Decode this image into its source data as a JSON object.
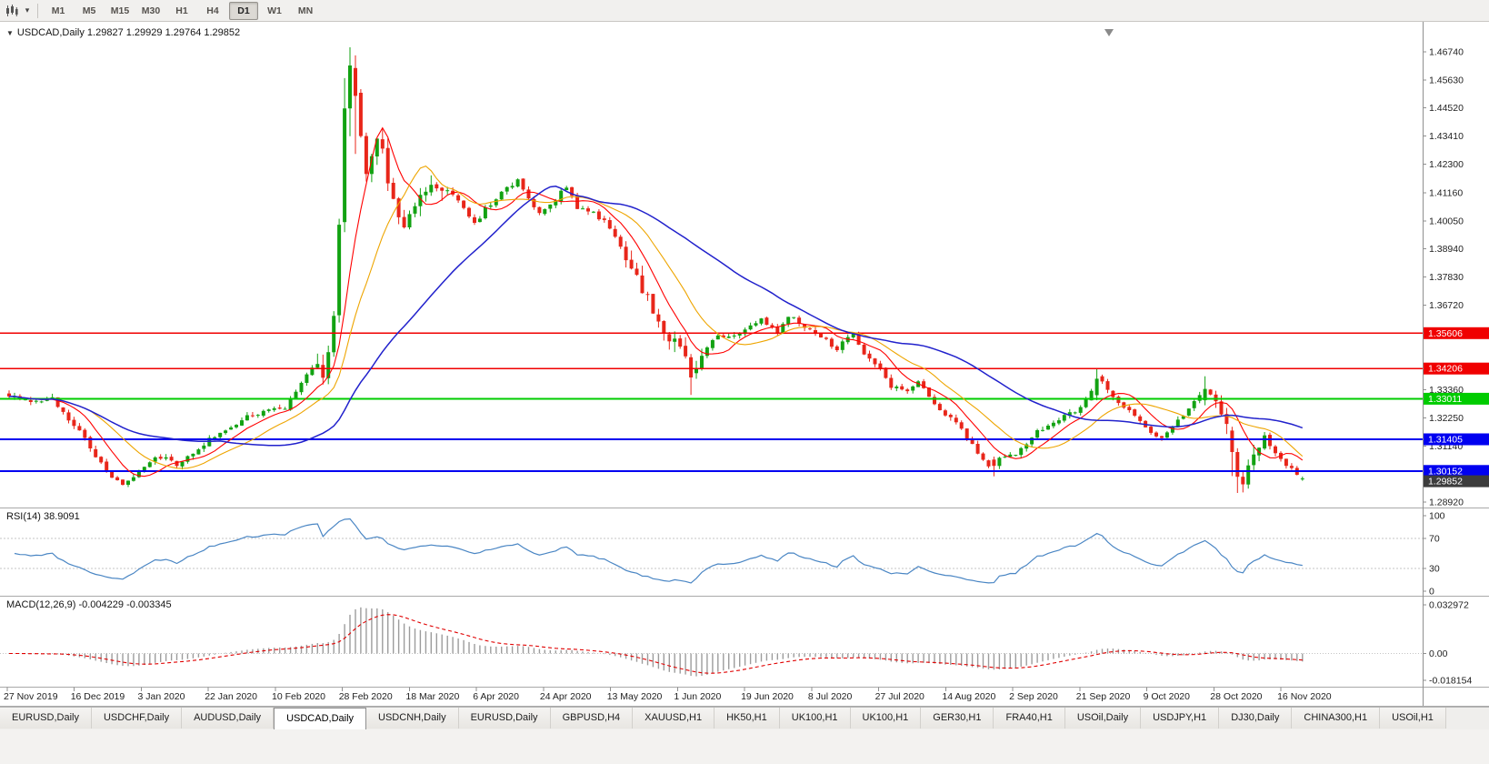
{
  "toolbar": {
    "timeframes": [
      "M1",
      "M5",
      "M15",
      "M30",
      "H1",
      "H4",
      "D1",
      "W1",
      "MN"
    ],
    "active_timeframe": "D1"
  },
  "chart": {
    "collapse_icon": "▼",
    "title": "USDCAD,Daily 1.29827 1.29929 1.29764 1.29852"
  },
  "rsi": {
    "label": "RSI(14) 38.9091",
    "period": 14,
    "value": "38.9091",
    "axis_labels": [
      "100",
      "70",
      "30",
      "0"
    ],
    "axis_values": [
      100,
      70,
      30,
      0
    ],
    "dashed_levels": [
      70,
      30
    ]
  },
  "macd": {
    "label": "MACD(12,26,9) -0.004229 -0.003345",
    "main_value": "-0.004229",
    "signal_value": "-0.003345",
    "axis_labels": [
      "0.032972",
      "0.00",
      "-0.018154"
    ],
    "axis_values": [
      0.032972,
      0,
      -0.018154
    ]
  },
  "axis": {
    "price_ticks": [
      "1.46740",
      "1.45630",
      "1.44520",
      "1.43410",
      "1.42300",
      "1.41160",
      "1.40050",
      "1.38940",
      "1.37830",
      "1.36720",
      "1.33360",
      "1.32250",
      "1.31140",
      "1.28920"
    ]
  },
  "chart_data": {
    "type": "candlestick",
    "symbol": "USDCAD",
    "timeframe": "Daily",
    "last_ohlc": {
      "open": "1.29827",
      "high": "1.29929",
      "low": "1.29764",
      "close": "1.29852"
    },
    "y_range": [
      1.2892,
      1.4674
    ],
    "date_labels": [
      "27 Nov 2019",
      "16 Dec 2019",
      "3 Jan 2020",
      "22 Jan 2020",
      "10 Feb 2020",
      "28 Feb 2020",
      "18 Mar 2020",
      "6 Apr 2020",
      "24 Apr 2020",
      "13 May 2020",
      "1 Jun 2020",
      "19 Jun 2020",
      "8 Jul 2020",
      "27 Jul 2020",
      "14 Aug 2020",
      "2 Sep 2020",
      "21 Sep 2020",
      "9 Oct 2020",
      "28 Oct 2020",
      "16 Nov 2020"
    ],
    "horizontal_levels": [
      {
        "price": 1.35606,
        "label": "1.35606",
        "color": "#f00000",
        "width": 1.5
      },
      {
        "price": 1.34206,
        "label": "1.34206",
        "color": "#f00000",
        "width": 1.5
      },
      {
        "price": 1.33011,
        "label": "1.33011",
        "color": "#00cc00",
        "width": 1.8
      },
      {
        "price": 1.31405,
        "label": "1.31405",
        "color": "#0000f0",
        "width": 2
      },
      {
        "price": 1.30152,
        "label": "1.30152",
        "color": "#0000f0",
        "width": 2
      }
    ],
    "current_price": {
      "price": 1.29852,
      "label": "1.29852",
      "color": "#3c3c3c"
    },
    "candle_count": 240,
    "candle_anchors": [
      [
        0,
        1.331
      ],
      [
        4,
        1.3292
      ],
      [
        8,
        1.33
      ],
      [
        10,
        1.324
      ],
      [
        13,
        1.318
      ],
      [
        15,
        1.311
      ],
      [
        17,
        1.304
      ],
      [
        19,
        1.2995
      ],
      [
        21,
        1.2968
      ],
      [
        24,
        1.3005
      ],
      [
        27,
        1.306
      ],
      [
        29,
        1.3075
      ],
      [
        31,
        1.304
      ],
      [
        34,
        1.309
      ],
      [
        37,
        1.314
      ],
      [
        41,
        1.318
      ],
      [
        44,
        1.323
      ],
      [
        47,
        1.3255
      ],
      [
        51,
        1.327
      ],
      [
        53,
        1.333
      ],
      [
        55,
        1.339
      ],
      [
        57,
        1.344
      ],
      [
        58,
        1.338
      ],
      [
        59,
        1.347
      ],
      [
        60,
        1.364
      ],
      [
        61,
        1.398
      ],
      [
        62,
        1.445
      ],
      [
        63,
        1.462
      ],
      [
        64,
        1.45
      ],
      [
        65,
        1.433
      ],
      [
        66,
        1.418
      ],
      [
        67,
        1.426
      ],
      [
        68,
        1.431
      ],
      [
        69,
        1.428
      ],
      [
        70,
        1.415
      ],
      [
        72,
        1.401
      ],
      [
        73,
        1.396
      ],
      [
        75,
        1.408
      ],
      [
        78,
        1.416
      ],
      [
        81,
        1.412
      ],
      [
        84,
        1.406
      ],
      [
        86,
        1.399
      ],
      [
        88,
        1.405
      ],
      [
        91,
        1.412
      ],
      [
        94,
        1.416
      ],
      [
        96,
        1.41
      ],
      [
        98,
        1.403
      ],
      [
        101,
        1.409
      ],
      [
        103,
        1.414
      ],
      [
        105,
        1.406
      ],
      [
        108,
        1.404
      ],
      [
        111,
        1.398
      ],
      [
        114,
        1.387
      ],
      [
        116,
        1.378
      ],
      [
        119,
        1.366
      ],
      [
        121,
        1.356
      ],
      [
        124,
        1.352
      ],
      [
        126,
        1.338
      ],
      [
        128,
        1.348
      ],
      [
        131,
        1.356
      ],
      [
        133,
        1.354
      ],
      [
        136,
        1.358
      ],
      [
        139,
        1.361
      ],
      [
        142,
        1.356
      ],
      [
        144,
        1.363
      ],
      [
        147,
        1.359
      ],
      [
        149,
        1.356
      ],
      [
        151,
        1.353
      ],
      [
        153,
        1.35
      ],
      [
        156,
        1.357
      ],
      [
        158,
        1.347
      ],
      [
        161,
        1.3415
      ],
      [
        163,
        1.335
      ],
      [
        166,
        1.333
      ],
      [
        168,
        1.337
      ],
      [
        171,
        1.327
      ],
      [
        173,
        1.324
      ],
      [
        176,
        1.318
      ],
      [
        178,
        1.312
      ],
      [
        181,
        1.303
      ],
      [
        183,
        1.306
      ],
      [
        186,
        1.308
      ],
      [
        188,
        1.312
      ],
      [
        190,
        1.317
      ],
      [
        193,
        1.32
      ],
      [
        195,
        1.323
      ],
      [
        198,
        1.326
      ],
      [
        199,
        1.33
      ],
      [
        201,
        1.338
      ],
      [
        203,
        1.334
      ],
      [
        205,
        1.329
      ],
      [
        207,
        1.325
      ],
      [
        211,
        1.316
      ],
      [
        213,
        1.314
      ],
      [
        215,
        1.319
      ],
      [
        217,
        1.323
      ],
      [
        219,
        1.33
      ],
      [
        221,
        1.334
      ],
      [
        223,
        1.331
      ],
      [
        225,
        1.318
      ],
      [
        226,
        1.309
      ],
      [
        227,
        1.299
      ],
      [
        228,
        1.296
      ],
      [
        229,
        1.302
      ],
      [
        231,
        1.312
      ],
      [
        232,
        1.315
      ],
      [
        234,
        1.309
      ],
      [
        235,
        1.306
      ],
      [
        237,
        1.302
      ],
      [
        239,
        1.29852
      ]
    ],
    "candle_specials": {
      "62": [
        1.4,
        1.457,
        1.396,
        1.445
      ],
      "63": [
        1.445,
        1.4692,
        1.434,
        1.462
      ],
      "64": [
        1.461,
        1.466,
        1.427,
        1.45
      ],
      "126": [
        1.3465,
        1.3478,
        1.3316,
        1.3385
      ],
      "182": [
        1.306,
        1.3072,
        1.2994,
        1.3035
      ],
      "201": [
        1.3315,
        1.342,
        1.3295,
        1.338
      ],
      "221": [
        1.3295,
        1.339,
        1.3275,
        1.334
      ],
      "226": [
        1.3175,
        1.319,
        1.2995,
        1.309
      ],
      "227": [
        1.309,
        1.3105,
        1.2928,
        1.2992
      ],
      "228": [
        1.2992,
        1.3015,
        1.293,
        1.2962
      ],
      "239": [
        1.29827,
        1.29929,
        1.29764,
        1.29852
      ]
    },
    "volatile_zones": [
      [
        57,
        80
      ],
      [
        114,
        128
      ],
      [
        223,
        231
      ]
    ],
    "moving_averages": [
      {
        "name": "ma-fast",
        "period": 8,
        "color": "#ff0000",
        "width": 1.1
      },
      {
        "name": "ma-mid",
        "period": 16,
        "color": "#eea500",
        "width": 1.1
      },
      {
        "name": "ma-slow",
        "period": 40,
        "color": "#2121cc",
        "width": 1.5
      }
    ]
  },
  "colors": {
    "up_candle": "#12a212",
    "down_candle": "#e8261a",
    "rsi_line": "#4a86c4",
    "macd_hist": "#9c9c9c",
    "macd_signal": "#e00000",
    "axis_text": "#1e1e1e",
    "separator": "#a9a9a9",
    "dashed_level": "#c4c4c4"
  },
  "tabs": {
    "items": [
      "EURUSD,Daily",
      "USDCHF,Daily",
      "AUDUSD,Daily",
      "USDCAD,Daily",
      "USDCNH,Daily",
      "EURUSD,Daily",
      "GBPUSD,H4",
      "XAUUSD,H1",
      "HK50,H1",
      "UK100,H1",
      "UK100,H1",
      "GER30,H1",
      "FRA40,H1",
      "USOil,Daily",
      "USDJPY,H1",
      "DJ30,Daily",
      "CHINA300,H1",
      "USOil,H1"
    ],
    "active_index": 3
  }
}
